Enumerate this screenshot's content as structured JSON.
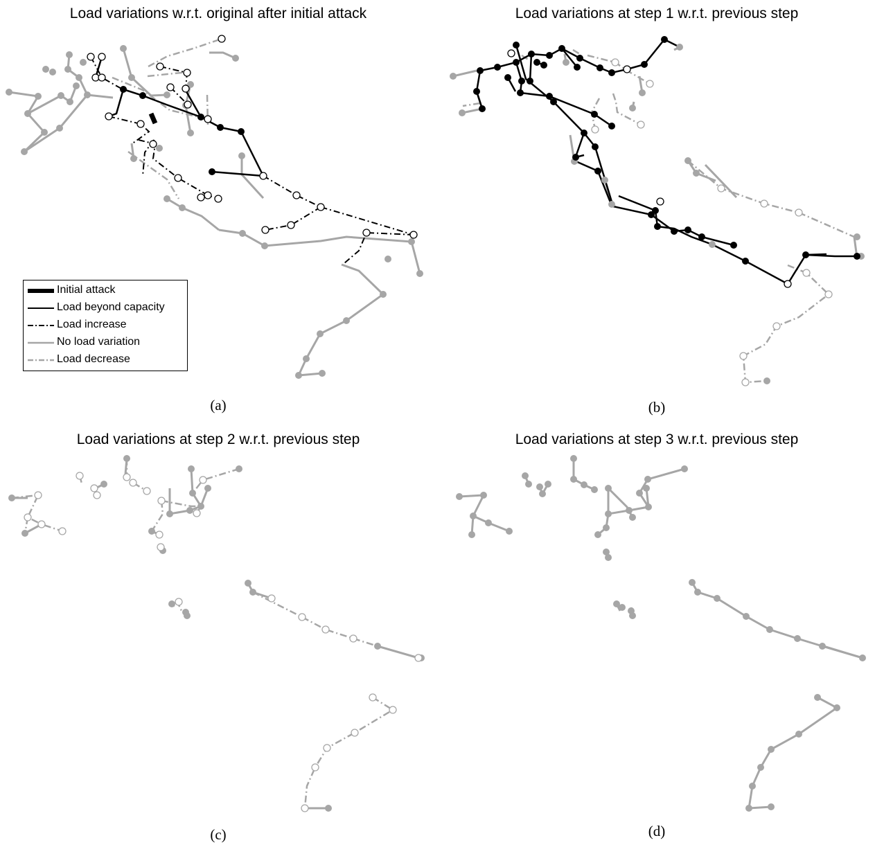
{
  "panels": [
    {
      "id": "a",
      "title": "Load variations w.r.t. original after initial attack",
      "caption": "(a)"
    },
    {
      "id": "b",
      "title": "Load variations at step 1 w.r.t. previous step",
      "caption": "(b)"
    },
    {
      "id": "c",
      "title": "Load variations at step 2 w.r.t. previous step",
      "caption": "(c)"
    },
    {
      "id": "d",
      "title": "Load variations at step 3 w.r.t. previous step",
      "caption": "(d)"
    }
  ],
  "legend": {
    "items": [
      {
        "key": "attack",
        "label": "Initial attack"
      },
      {
        "key": "beyond",
        "label": "Load beyond capacity"
      },
      {
        "key": "increase",
        "label": "Load increase"
      },
      {
        "key": "none",
        "label": "No load variation"
      },
      {
        "key": "decrease",
        "label": "Load decrease"
      }
    ]
  },
  "colors": {
    "black": "#000000",
    "grey": "#a6a6a6"
  }
}
